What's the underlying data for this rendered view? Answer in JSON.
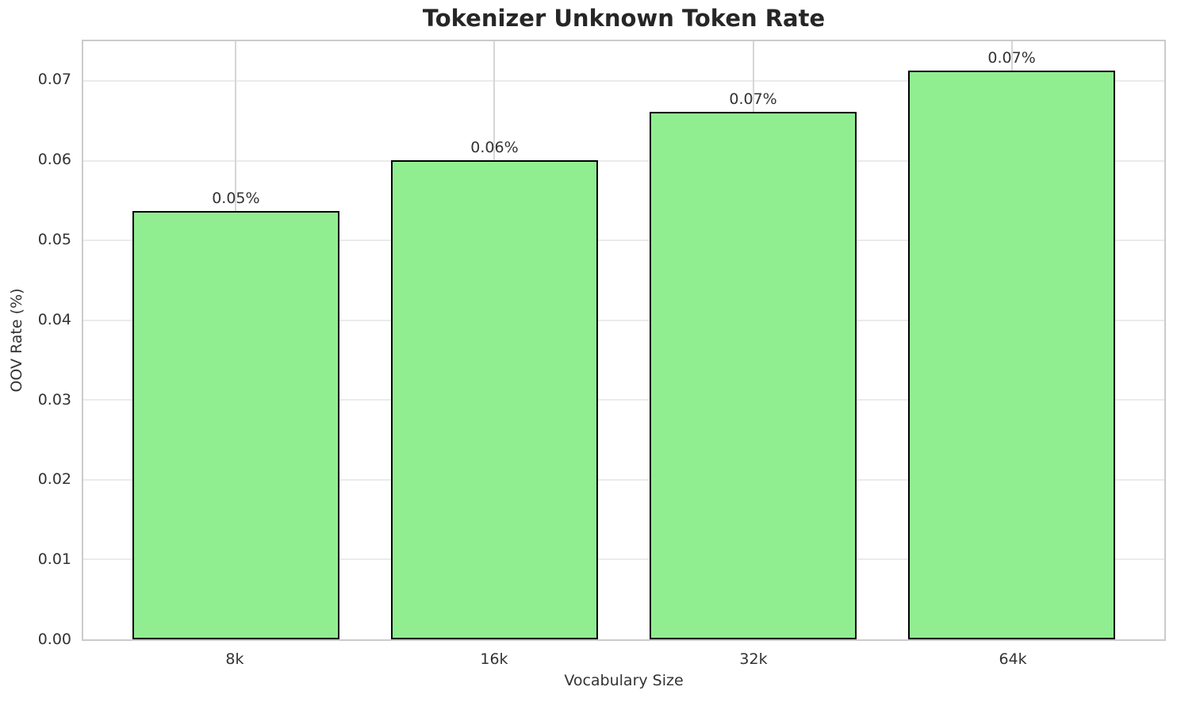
{
  "chart_data": {
    "type": "bar",
    "title": "Tokenizer Unknown Token Rate",
    "xlabel": "Vocabulary Size",
    "ylabel": "OOV Rate (%)",
    "categories": [
      "8k",
      "16k",
      "32k",
      "64k"
    ],
    "values": [
      0.0537,
      0.0601,
      0.0661,
      0.0713
    ],
    "bar_labels": [
      "0.05%",
      "0.06%",
      "0.07%",
      "0.07%"
    ],
    "ytick_labels": [
      "0.00",
      "0.01",
      "0.02",
      "0.03",
      "0.04",
      "0.05",
      "0.06",
      "0.07"
    ],
    "ytick_values": [
      0,
      0.01,
      0.02,
      0.03,
      0.04,
      0.05,
      0.06,
      0.07
    ],
    "ylim": [
      0,
      0.075
    ],
    "xlim": [
      -0.59,
      3.59
    ],
    "bar_width": 0.8,
    "grid": "horizontal and vertical light gray gridlines",
    "legend": "none",
    "colors": {
      "bar_fill": "#90ee90",
      "bar_edge": "#000000",
      "hgrid_line": "#ebebeb",
      "vgrid_line": "#d6d6d6",
      "spine": "#cbcbcb",
      "title_text": "#262626",
      "tick_text": "#333333",
      "background": "#ffffff"
    }
  }
}
